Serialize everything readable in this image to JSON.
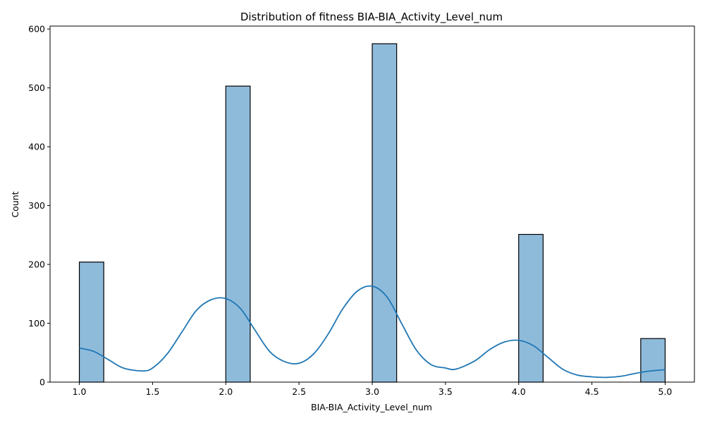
{
  "chart_data": {
    "type": "bar",
    "title": "Distribution of fitness BIA-BIA_Activity_Level_num",
    "xlabel": "BIA-BIA_Activity_Level_num",
    "ylabel": "Count",
    "xlim": [
      0.8,
      5.2
    ],
    "ylim": [
      0,
      605
    ],
    "xticks": [
      1.0,
      1.5,
      2.0,
      2.5,
      3.0,
      3.5,
      4.0,
      4.5,
      5.0
    ],
    "xtick_labels": [
      "1.0",
      "1.5",
      "2.0",
      "2.5",
      "3.0",
      "3.5",
      "4.0",
      "4.5",
      "5.0"
    ],
    "yticks": [
      0,
      100,
      200,
      300,
      400,
      500,
      600
    ],
    "ytick_labels": [
      "0",
      "100",
      "200",
      "300",
      "400",
      "500",
      "600"
    ],
    "bins": [
      {
        "x0": 1.0,
        "x1": 1.1667,
        "count": 204
      },
      {
        "x0": 2.0,
        "x1": 2.1667,
        "count": 503
      },
      {
        "x0": 3.0,
        "x1": 3.1667,
        "count": 575
      },
      {
        "x0": 4.0,
        "x1": 4.1667,
        "count": 251
      },
      {
        "x0": 4.8333,
        "x1": 5.0,
        "count": 74
      }
    ],
    "kde": {
      "x": [
        1.0,
        1.1,
        1.2,
        1.3,
        1.43,
        1.5,
        1.6,
        1.7,
        1.8,
        1.9,
        2.0,
        2.1,
        2.2,
        2.3,
        2.4,
        2.5,
        2.6,
        2.7,
        2.8,
        2.9,
        3.0,
        3.1,
        3.2,
        3.3,
        3.4,
        3.5,
        3.57,
        3.7,
        3.8,
        3.9,
        4.0,
        4.1,
        4.2,
        4.3,
        4.4,
        4.5,
        4.6,
        4.7,
        4.8,
        4.9,
        5.0
      ],
      "y": [
        58,
        52,
        38,
        24,
        19,
        24,
        48,
        85,
        122,
        140,
        142,
        125,
        88,
        52,
        35,
        32,
        48,
        82,
        125,
        155,
        163,
        145,
        100,
        55,
        30,
        24,
        22,
        36,
        55,
        68,
        71,
        62,
        42,
        22,
        12,
        9,
        8,
        10,
        15,
        19,
        21
      ]
    },
    "colors": {
      "bar_fill": "#8fbbdb",
      "bar_edge": "#000000",
      "kde_line": "#1f77b4"
    }
  }
}
